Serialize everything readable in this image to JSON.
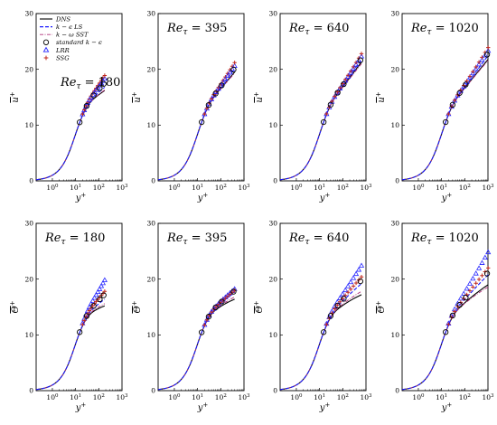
{
  "legend": [
    {
      "label": "DNS",
      "color": "#000000",
      "style": "solid",
      "marker": "none"
    },
    {
      "label": "k − ϵ LS",
      "color": "#1a1aff",
      "style": "dashed",
      "marker": "none"
    },
    {
      "label": "k − ω SST",
      "color": "#b0307a",
      "style": "dashdot",
      "marker": "none"
    },
    {
      "label": "standard k − ϵ",
      "color": "#000000",
      "style": "none",
      "marker": "circle"
    },
    {
      "label": "LRR",
      "color": "#2424ff",
      "style": "none",
      "marker": "triangle"
    },
    {
      "label": "SSG",
      "color": "#c0281e",
      "style": "none",
      "marker": "plus"
    }
  ],
  "chart_data": [
    {
      "type": "line",
      "row": 0,
      "title": "Reτ = 180",
      "xlabel": "y+",
      "ylabel": "u+",
      "xscale": "log",
      "xlim": [
        0.2,
        1000
      ],
      "ylim": [
        0,
        30
      ],
      "xticks": [
        "10^0",
        "10^1",
        "10^2",
        "10^3"
      ],
      "yticks": [
        0,
        10,
        20,
        30
      ],
      "ymax": 180,
      "curves": {
        "dns": 16.2,
        "ls": 16.8,
        "sst": 16.3,
        "ske": 17.6,
        "lrr": 18.3,
        "ssg": 18.9
      }
    },
    {
      "type": "line",
      "row": 0,
      "title": "Reτ = 395",
      "xlabel": "y+",
      "ylabel": "u+",
      "xscale": "log",
      "xlim": [
        0.2,
        1000
      ],
      "ylim": [
        0,
        30
      ],
      "xticks": [
        "10^0",
        "10^1",
        "10^2",
        "10^3"
      ],
      "yticks": [
        0,
        10,
        20,
        30
      ],
      "ymax": 395,
      "curves": {
        "dns": 19.5,
        "ls": 20.1,
        "sst": 19.3,
        "ske": 20.2,
        "lrr": 20.6,
        "ssg": 21.2
      }
    },
    {
      "type": "line",
      "row": 0,
      "title": "Reτ = 640",
      "xlabel": "y+",
      "ylabel": "u+",
      "xscale": "log",
      "xlim": [
        0.2,
        1000
      ],
      "ylim": [
        0,
        30
      ],
      "xticks": [
        "10^0",
        "10^1",
        "10^2",
        "10^3"
      ],
      "yticks": [
        0,
        10,
        20,
        30
      ],
      "ymax": 640,
      "curves": {
        "dns": 21.3,
        "ls": 21.8,
        "sst": 21.0,
        "ske": 21.9,
        "lrr": 22.3,
        "ssg": 22.8
      }
    },
    {
      "type": "line",
      "row": 0,
      "title": "Reτ = 1020",
      "xlabel": "y+",
      "ylabel": "u+",
      "xscale": "log",
      "xlim": [
        0.2,
        1000
      ],
      "ylim": [
        0,
        30
      ],
      "xticks": [
        "10^0",
        "10^1",
        "10^2",
        "10^3"
      ],
      "yticks": [
        0,
        10,
        20,
        30
      ],
      "ymax": 1020,
      "curves": {
        "dns": 21.8,
        "ls": 22.5,
        "sst": 21.6,
        "ske": 22.9,
        "lrr": 23.3,
        "ssg": 23.9
      }
    },
    {
      "type": "line",
      "row": 1,
      "title": "Reτ = 180",
      "xlabel": "y+",
      "ylabel": "Θ+",
      "xscale": "log",
      "xlim": [
        0.2,
        1000
      ],
      "ylim": [
        0,
        30
      ],
      "xticks": [
        "10^0",
        "10^1",
        "10^2",
        "10^3"
      ],
      "yticks": [
        0,
        10,
        20,
        30
      ],
      "ymax": 180,
      "curves": {
        "dns": 15.2,
        "ls": 16.4,
        "sst": 15.6,
        "ske": 17.3,
        "lrr": 19.8,
        "ssg": 17.8
      }
    },
    {
      "type": "line",
      "row": 1,
      "title": "Reτ = 395",
      "xlabel": "y+",
      "ylabel": "Θ+",
      "xscale": "log",
      "xlim": [
        0.2,
        1000
      ],
      "ylim": [
        0,
        30
      ],
      "xticks": [
        "10^0",
        "10^1",
        "10^2",
        "10^3"
      ],
      "yticks": [
        0,
        10,
        20,
        30
      ],
      "ymax": 395,
      "curves": {
        "dns": 16.4,
        "ls": 17.6,
        "sst": 16.8,
        "ske": 17.9,
        "lrr": 18.2,
        "ssg": 18.0
      }
    },
    {
      "type": "line",
      "row": 1,
      "title": "Reτ = 640",
      "xlabel": "y+",
      "ylabel": "Θ+",
      "xscale": "log",
      "xlim": [
        0.2,
        1000
      ],
      "ylim": [
        0,
        30
      ],
      "xticks": [
        "10^0",
        "10^1",
        "10^2",
        "10^3"
      ],
      "yticks": [
        0,
        10,
        20,
        30
      ],
      "ymax": 640,
      "curves": {
        "dns": 17.2,
        "ls": 19.2,
        "sst": 17.8,
        "ske": 19.8,
        "lrr": 22.4,
        "ssg": 20.4
      }
    },
    {
      "type": "line",
      "row": 1,
      "title": "Reτ = 1020",
      "xlabel": "y+",
      "ylabel": "Θ+",
      "xscale": "log",
      "xlim": [
        0.2,
        1000
      ],
      "ylim": [
        0,
        30
      ],
      "xticks": [
        "10^0",
        "10^1",
        "10^2",
        "10^3"
      ],
      "yticks": [
        0,
        10,
        20,
        30
      ],
      "ymax": 1020,
      "curves": {
        "dns": 19.0,
        "ls": 20.8,
        "sst": 18.6,
        "ske": 21.2,
        "lrr": 24.8,
        "ssg": 22.0
      }
    }
  ]
}
